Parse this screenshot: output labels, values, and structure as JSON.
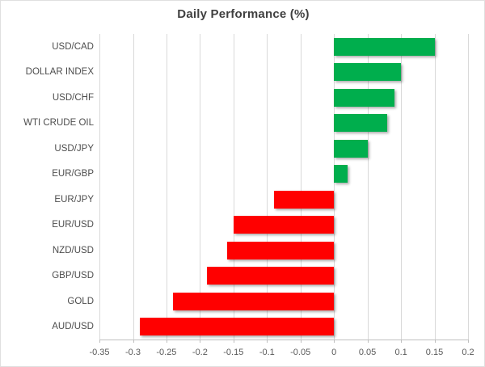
{
  "chart": {
    "title": "Daily Performance (%)"
  },
  "chart_data": {
    "type": "bar",
    "orientation": "horizontal",
    "title": "Daily Performance (%)",
    "categories": [
      "USD/CAD",
      "DOLLAR INDEX",
      "USD/CHF",
      "WTI CRUDE OIL",
      "USD/JPY",
      "EUR/GBP",
      "EUR/JPY",
      "EUR/USD",
      "NZD/USD",
      "GBP/USD",
      "GOLD",
      "AUD/USD"
    ],
    "values": [
      0.15,
      0.1,
      0.09,
      0.08,
      0.05,
      0.02,
      -0.09,
      -0.15,
      -0.16,
      -0.19,
      -0.24,
      -0.29
    ],
    "xlabel": "",
    "ylabel": "",
    "xlim": [
      -0.35,
      0.2
    ],
    "x_ticks": [
      -0.35,
      -0.3,
      -0.25,
      -0.2,
      -0.15,
      -0.1,
      -0.05,
      0,
      0.05,
      0.1,
      0.15,
      0.2
    ],
    "x_tick_labels": [
      "-0.35",
      "-0.3",
      "-0.25",
      "-0.2",
      "-0.15",
      "-0.1",
      "-0.05",
      "0",
      "0.05",
      "0.1",
      "0.15",
      "0.2"
    ],
    "grid": true,
    "legend": false,
    "colors": {
      "positive": "#00AE4D",
      "negative": "#FF0000",
      "gridline": "#d9d9d9",
      "axis_line": "#bfbfbf",
      "title_text": "#3f3f3f",
      "category_text": "#4d4d4d",
      "tick_text": "#595959"
    }
  }
}
